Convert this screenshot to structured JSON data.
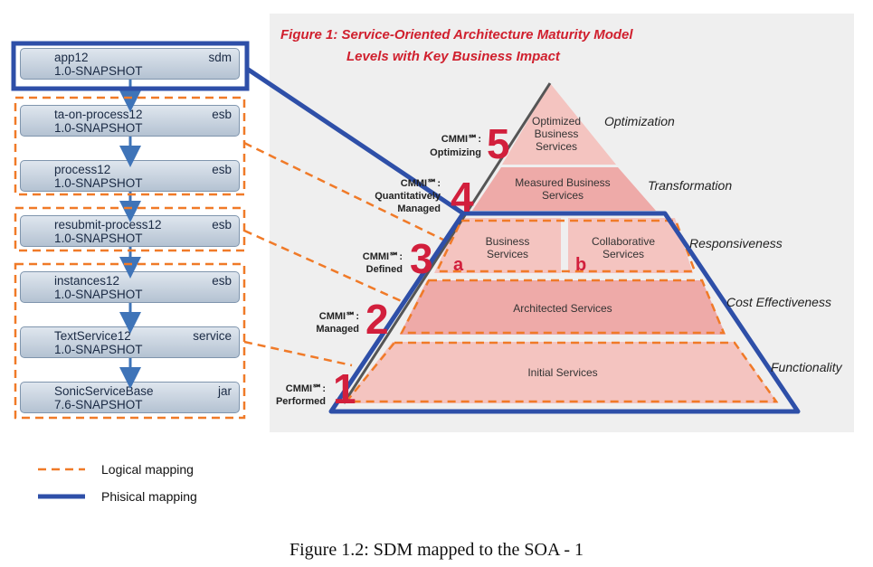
{
  "figure": {
    "title_line1": "Figure 1:  Service-Oriented Architecture Maturity Model",
    "title_line2": "Levels with Key Business Impact",
    "levels": [
      {
        "number": "1",
        "cmmi": "CMMI℠:",
        "cmmi_name": [
          "Performed"
        ],
        "services": [
          "Initial Services"
        ],
        "impact": "Functionality"
      },
      {
        "number": "2",
        "cmmi": "CMMI℠:",
        "cmmi_name": [
          "Managed"
        ],
        "services": [
          "Architected Services"
        ],
        "impact": "Cost Effectiveness"
      },
      {
        "number": "3",
        "cmmi": "CMMI℠:",
        "cmmi_name": [
          "Defined"
        ],
        "services_a": [
          "Business",
          "Services"
        ],
        "services_b": [
          "Collaborative",
          "Services"
        ],
        "letter_a": "a",
        "letter_b": "b",
        "impact": "Responsiveness"
      },
      {
        "number": "4",
        "cmmi": "CMMI℠:",
        "cmmi_name": [
          "Quantitatively",
          "Managed"
        ],
        "services": [
          "Measured Business",
          "Services"
        ],
        "impact": "Transformation"
      },
      {
        "number": "5",
        "cmmi": "CMMI℠:",
        "cmmi_name": [
          "Optimizing"
        ],
        "services": [
          "Optimized",
          "Business",
          "Services"
        ],
        "impact": "Optimization"
      }
    ]
  },
  "modules": [
    {
      "name": "app12",
      "version": "1.0-SNAPSHOT",
      "type": "sdm"
    },
    {
      "name": "ta-on-process12",
      "version": "1.0-SNAPSHOT",
      "type": "esb"
    },
    {
      "name": "process12",
      "version": "1.0-SNAPSHOT",
      "type": "esb"
    },
    {
      "name": "resubmit-process12",
      "version": "1.0-SNAPSHOT",
      "type": "esb"
    },
    {
      "name": "instances12",
      "version": "1.0-SNAPSHOT",
      "type": "esb"
    },
    {
      "name": "TextService12",
      "version": "1.0-SNAPSHOT",
      "type": "service"
    },
    {
      "name": "SonicServiceBase",
      "version": "7.6-SNAPSHOT",
      "type": "jar"
    }
  ],
  "legend": {
    "logical": "Logical mapping",
    "physical": "Phisical mapping"
  },
  "colors": {
    "logical": "#f07a28",
    "physical": "#2e4fa8",
    "accent": "#d21f3c"
  },
  "caption": "Figure 1.2: SDM mapped to the SOA - 1"
}
